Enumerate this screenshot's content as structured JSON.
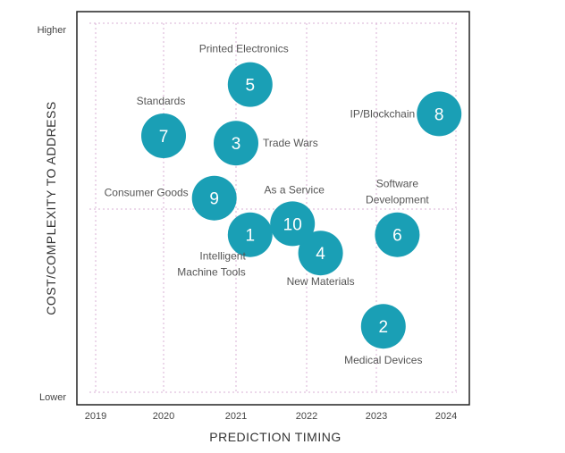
{
  "chart_data": {
    "type": "scatter",
    "title": "",
    "xlabel": "PREDICTION TIMING",
    "ylabel": "COST/COMPLEXITY TO ADDRESS",
    "x_ticks": [
      "2019",
      "2020",
      "2021",
      "2022",
      "2023",
      "2024"
    ],
    "y_ticks": [
      "Lower",
      "Higher"
    ],
    "grid": true,
    "bubble_color": "#1a9fb5",
    "points": [
      {
        "id": "1",
        "label": "Intelligent Machine Tools",
        "x": 2021.2,
        "y": 0.43
      },
      {
        "id": "2",
        "label": "Medical Devices",
        "x": 2023.1,
        "y": 0.18
      },
      {
        "id": "3",
        "label": "Trade Wars",
        "x": 2021.0,
        "y": 0.68
      },
      {
        "id": "4",
        "label": "New Materials",
        "x": 2022.2,
        "y": 0.38
      },
      {
        "id": "5",
        "label": "Printed Electronics",
        "x": 2021.2,
        "y": 0.84
      },
      {
        "id": "6",
        "label": "Software Development",
        "x": 2023.3,
        "y": 0.43
      },
      {
        "id": "7",
        "label": "Standards",
        "x": 2020.0,
        "y": 0.7
      },
      {
        "id": "8",
        "label": "IP/Blockchain",
        "x": 2023.9,
        "y": 0.76
      },
      {
        "id": "9",
        "label": "Consumer Goods",
        "x": 2020.7,
        "y": 0.53
      },
      {
        "id": "10",
        "label": "As a Service",
        "x": 2021.8,
        "y": 0.46
      }
    ]
  }
}
